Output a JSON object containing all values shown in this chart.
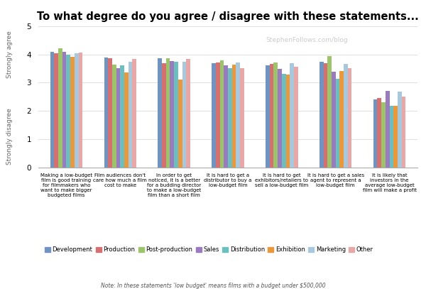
{
  "title": "To what degree do you agree / disagree with these statements...",
  "watermark": "StephenFollows.com/blog",
  "note": "Note: In these statements 'low budget' means films with a budget under $500,000",
  "ylabel_top": "Strongly agree",
  "ylabel_bottom": "Strongly disagree",
  "ylim": [
    0,
    5
  ],
  "yticks": [
    0,
    1,
    2,
    3,
    4,
    5
  ],
  "categories": [
    "Making a low-budget\nfilm is good training\nfor filmmakers who\nwant to make bigger\nbudgeted films",
    "Film audiences don't\ncare how much a film\ncost to make",
    "In order to get\nnoticed, it is a better\nfor a budding director\nto make a low-budget\nfilm than a short film",
    "It is hard to get a\ndistributor to buy a\nlow-budget film",
    "It is hard to get\nexhibitors/retailers to\nsell a low-budget film",
    "It is hard to get a sales\nagent to represent a\nlow-budget film",
    "It is likely that\ninvestors in the\naverage low-budget\nfilm will make a profit"
  ],
  "series": {
    "Development": {
      "color": "#7093c0",
      "values": [
        4.08,
        3.9,
        3.85,
        3.68,
        3.62,
        3.73,
        2.4
      ]
    },
    "Production": {
      "color": "#d47070",
      "values": [
        4.05,
        3.87,
        3.68,
        3.7,
        3.65,
        3.68,
        2.45
      ]
    },
    "Post-production": {
      "color": "#9dc36b",
      "values": [
        4.22,
        3.63,
        3.85,
        3.78,
        3.72,
        3.93,
        2.32
      ]
    },
    "Sales": {
      "color": "#9b7bbf",
      "values": [
        4.08,
        3.52,
        3.77,
        3.6,
        3.48,
        3.38,
        2.72
      ]
    },
    "Distribution": {
      "color": "#6bbfbf",
      "values": [
        4.0,
        3.6,
        3.73,
        3.5,
        3.32,
        3.13,
        2.18
      ]
    },
    "Exhibition": {
      "color": "#e8983d",
      "values": [
        3.92,
        3.37,
        3.1,
        3.63,
        3.28,
        3.4,
        2.18
      ]
    },
    "Marketing": {
      "color": "#aac8dc",
      "values": [
        4.05,
        3.73,
        3.73,
        3.7,
        3.68,
        3.65,
        2.68
      ]
    },
    "Other": {
      "color": "#e8a8a8",
      "values": [
        4.07,
        3.83,
        3.83,
        3.5,
        3.55,
        3.5,
        2.5
      ]
    }
  },
  "figsize": [
    6.0,
    4.07
  ],
  "dpi": 100
}
